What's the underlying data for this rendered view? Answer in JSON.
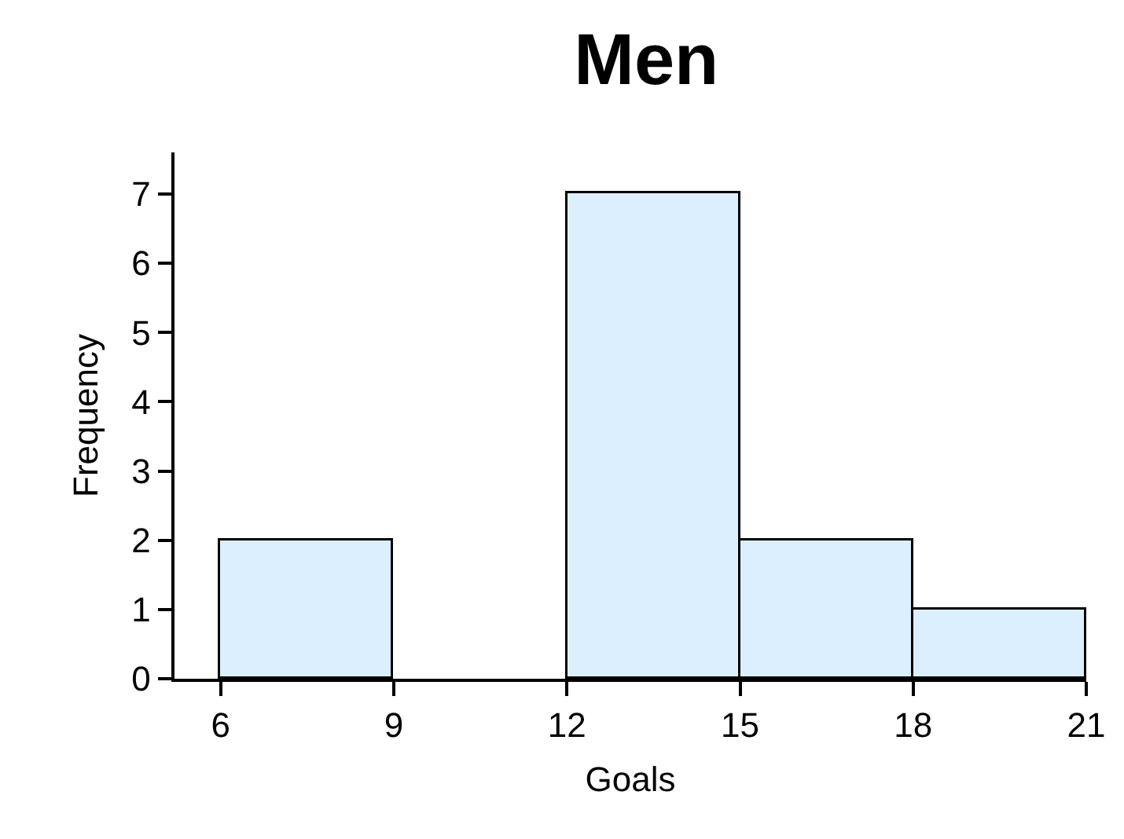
{
  "chart_data": {
    "type": "histogram",
    "title": "Men",
    "xlabel": "Goals",
    "ylabel": "Frequency",
    "bins": [
      6,
      9,
      12,
      15,
      18,
      21
    ],
    "values": [
      2,
      0,
      7,
      2,
      1
    ],
    "color": "#dcefff",
    "xlim": [
      5.2,
      21
    ],
    "xticks": [
      6,
      9,
      12,
      15,
      18,
      21
    ],
    "ylim": [
      0,
      7.6
    ],
    "yticks": [
      0,
      1,
      2,
      3,
      4,
      5,
      6,
      7
    ]
  }
}
